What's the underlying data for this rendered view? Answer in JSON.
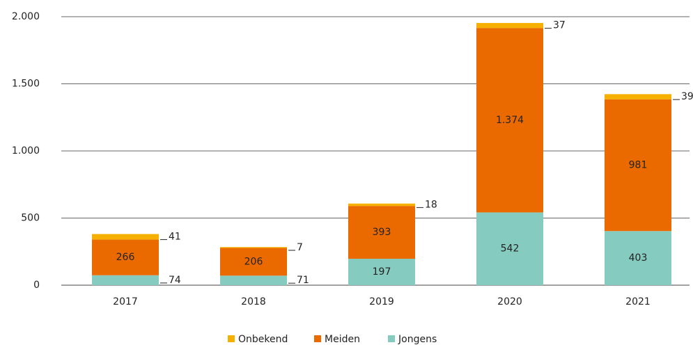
{
  "chart_data": {
    "type": "stacked_bar",
    "categories": [
      "2017",
      "2018",
      "2019",
      "2020",
      "2021"
    ],
    "series": [
      {
        "name": "Jongens",
        "color": "#86cbbf",
        "values": [
          74,
          71,
          197,
          542,
          403
        ]
      },
      {
        "name": "Meiden",
        "color": "#eb6a00",
        "values": [
          266,
          206,
          393,
          1374,
          981
        ],
        "value_labels": [
          "266",
          "206",
          "393",
          "1.374",
          "981"
        ]
      },
      {
        "name": "Onbekend",
        "color": "#f5b000",
        "values": [
          41,
          7,
          18,
          37,
          39
        ]
      }
    ],
    "ylim": [
      0,
      2000
    ],
    "yticks": [
      0,
      500,
      {
        "value": 1000,
        "label": "1.000"
      },
      {
        "value": 1500,
        "label": "1.500"
      },
      {
        "value": 2000,
        "label": "2.000"
      }
    ],
    "grid": true,
    "legend": "bottom"
  }
}
